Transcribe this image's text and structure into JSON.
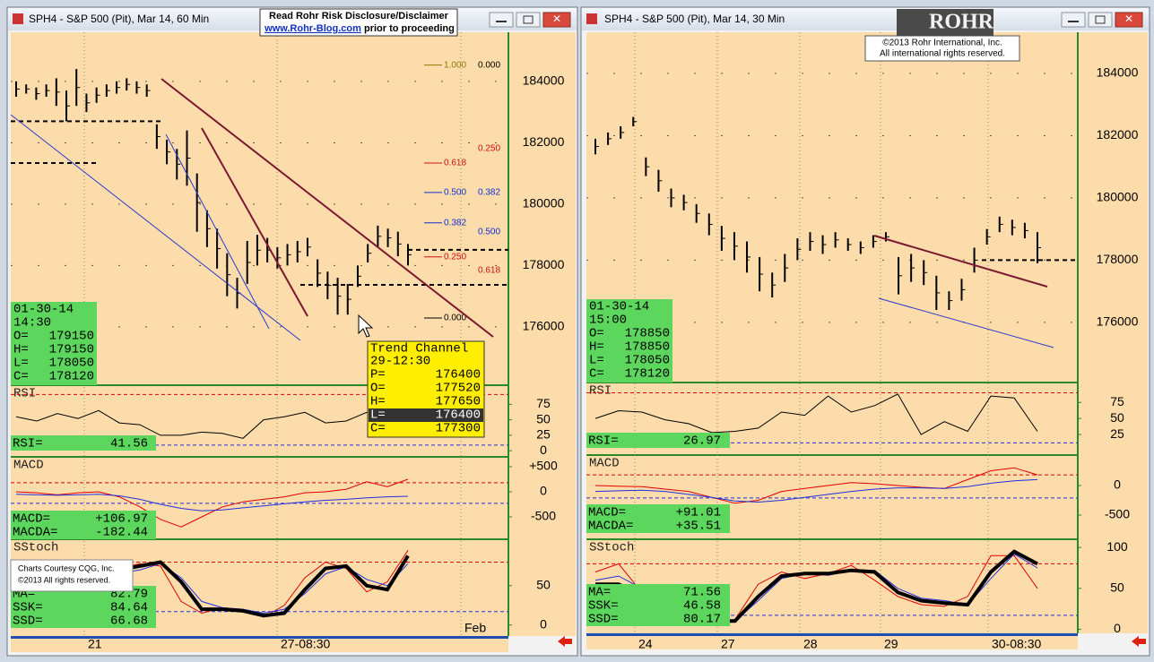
{
  "disclaimer": {
    "heading": "Read Rohr Risk Disclosure/Disclaimer",
    "link": "www.Rohr-Blog.com",
    "tail": "prior to proceeding"
  },
  "logo": {
    "brand": "ROHR",
    "copyright": "©2013  Rohr International, Inc.",
    "rights": "All international rights reserved."
  },
  "courtesy": {
    "line1": "Charts Courtesy CQG, Inc.",
    "line2": "©2013 All rights reserved."
  },
  "trend_channel": {
    "title": "Trend Channel",
    "time": "29-12:30",
    "rows": [
      {
        "label": "P=",
        "value": "176400"
      },
      {
        "label": "O=",
        "value": "177520"
      },
      {
        "label": "H=",
        "value": "177650"
      },
      {
        "label": "L=",
        "value": "176400"
      },
      {
        "label": "C=",
        "value": "177300"
      }
    ]
  },
  "windows": [
    {
      "title": "SPH4 - S&P 500 (Pit), Mar 14, 60 Min",
      "price": {
        "ylim": [
          174100,
          185600
        ],
        "yticks": [
          184000,
          182000,
          180000,
          178000,
          176000
        ],
        "highs": [
          184000,
          183900,
          183800,
          183900,
          184100,
          183700,
          184400,
          183600,
          183800,
          183900,
          184000,
          184100,
          184000,
          183900,
          182600,
          182100,
          181800,
          182400,
          181000,
          179800,
          179200,
          178400,
          177600,
          178800,
          179000,
          178900,
          178600,
          178700,
          178800,
          178900,
          178200,
          177800,
          177600,
          177400,
          178000,
          178700,
          179300,
          179200,
          179100,
          178700
        ],
        "lows": [
          183500,
          183600,
          183400,
          183500,
          183200,
          182700,
          183200,
          183000,
          183300,
          183500,
          183600,
          183700,
          183600,
          183500,
          181800,
          181300,
          180800,
          180600,
          179100,
          178600,
          177900,
          177000,
          176600,
          177400,
          178000,
          178100,
          177900,
          178000,
          178100,
          178300,
          177300,
          176900,
          176400,
          176400,
          177300,
          178100,
          178600,
          178600,
          178300,
          178000
        ],
        "levels": [
          182700,
          181340,
          178510,
          177370
        ],
        "fib": [
          {
            "label": "1.000",
            "price": 184530,
            "color": "#8a7a00"
          },
          {
            "label": "0.000",
            "price": 184530,
            "color": "#000000"
          },
          {
            "label": "0.250",
            "price": 181810,
            "color": "#d01010"
          },
          {
            "label": "0.618",
            "price": 181340,
            "color": "#d01010"
          },
          {
            "label": "0.500",
            "price": 180380,
            "color": "#1030d0"
          },
          {
            "label": "0.382",
            "price": 180380,
            "color": "#1030d0"
          },
          {
            "label": "0.382",
            "price": 179390,
            "color": "#1030d0"
          },
          {
            "label": "0.500",
            "price": 179100,
            "color": "#1030d0"
          },
          {
            "label": "0.250",
            "price": 178280,
            "color": "#d01010"
          },
          {
            "label": "0.618",
            "price": 177840,
            "color": "#d01010"
          },
          {
            "label": "0.000",
            "price": 176290,
            "color": "#000000"
          }
        ]
      },
      "info": {
        "date": "01-30-14",
        "time": "14:30",
        "rows": [
          {
            "label": "O=",
            "value": "179150"
          },
          {
            "label": "H=",
            "value": "179150"
          },
          {
            "label": "L=",
            "value": "178050"
          },
          {
            "label": "C=",
            "value": "178120"
          }
        ]
      },
      "x_labels": [
        "21",
        "27-08:30",
        "Feb"
      ],
      "panes": [
        {
          "name": "RSI",
          "ylim": [
            -10,
            106
          ],
          "yticks": [
            75,
            50,
            25,
            0
          ],
          "guides": [
            91,
            9
          ],
          "series": [
            {
              "color": "#000000",
              "values": [
                55,
                48,
                60,
                52,
                65,
                45,
                42,
                25,
                25,
                30,
                28,
                20,
                50,
                55,
                62,
                45,
                48,
                62,
                40,
                50
              ]
            }
          ],
          "readout": [
            {
              "label": "RSI=",
              "value": "41.56"
            }
          ]
        },
        {
          "name": "MACD",
          "ylim": [
            -946,
            696
          ],
          "yticks": [
            {
              "value": 500,
              "label": "+500"
            },
            0,
            -500
          ],
          "guides": [
            180,
            -230
          ],
          "series": [
            {
              "color": "#e00000",
              "values": [
                0,
                -20,
                -60,
                -20,
                0,
                -100,
                -300,
                -550,
                -700,
                -500,
                -300,
                -200,
                -150,
                -100,
                -20,
                0,
                50,
                200,
                100,
                250
              ]
            },
            {
              "color": "#2030e0",
              "values": [
                -50,
                -60,
                -70,
                -60,
                -50,
                -80,
                -150,
                -250,
                -330,
                -380,
                -360,
                -320,
                -280,
                -240,
                -200,
                -170,
                -150,
                -120,
                -100,
                -90
              ]
            }
          ],
          "readout": [
            {
              "label": "MACD=",
              "value": "+106.97"
            },
            {
              "label": "MACDA=",
              "value": "-182.44"
            }
          ]
        },
        {
          "name": "SStoch",
          "ylim": [
            -14,
            109
          ],
          "yticks": [
            50,
            0
          ],
          "guides": [
            80,
            17
          ],
          "series": [
            {
              "color": "#e00000",
              "values": [
                45,
                50,
                55,
                62,
                68,
                72,
                78,
                75,
                30,
                15,
                22,
                20,
                10,
                25,
                60,
                80,
                72,
                42,
                55,
                95
              ]
            },
            {
              "color": "#2030e0",
              "values": [
                48,
                50,
                52,
                58,
                62,
                66,
                70,
                78,
                60,
                30,
                22,
                20,
                15,
                20,
                40,
                65,
                74,
                58,
                50,
                78
              ]
            },
            {
              "color": "#000000",
              "values": [
                50,
                52,
                55,
                60,
                65,
                70,
                75,
                80,
                55,
                20,
                20,
                18,
                12,
                15,
                45,
                72,
                75,
                50,
                45,
                88
              ]
            }
          ],
          "readout": [
            {
              "label": "MA=",
              "value": "82.79"
            },
            {
              "label": "SSK=",
              "value": "84.64"
            },
            {
              "label": "SSD=",
              "value": "66.68"
            }
          ]
        }
      ]
    },
    {
      "title": "SPH4 - S&P 500 (Pit), Mar 14, 30 Min",
      "price": {
        "ylim": [
          174070,
          185320
        ],
        "yticks": [
          184000,
          182000,
          180000,
          178000,
          176000
        ],
        "highs": [
          181900,
          182100,
          182300,
          182600,
          181300,
          180900,
          180300,
          180100,
          179800,
          179500,
          179100,
          178900,
          178600,
          178100,
          177600,
          178200,
          178700,
          178900,
          178800,
          178900,
          178700,
          178600,
          178800,
          178900,
          178100,
          178200,
          178000,
          177500,
          177000,
          177400,
          178400,
          179000,
          179400,
          179300,
          179200,
          178900
        ],
        "lows": [
          181400,
          181700,
          181900,
          182300,
          180700,
          180200,
          179700,
          179600,
          179200,
          178800,
          178300,
          178000,
          177600,
          177000,
          176800,
          177300,
          178000,
          178300,
          178200,
          178400,
          178300,
          178200,
          178400,
          178600,
          176900,
          177300,
          177200,
          176400,
          176400,
          176700,
          177600,
          178500,
          178900,
          178800,
          178700,
          177900
        ],
        "levels": [
          178000
        ],
        "fib": []
      },
      "info": {
        "date": "01-30-14",
        "time": "15:00",
        "rows": [
          {
            "label": "O=",
            "value": "178850"
          },
          {
            "label": "H=",
            "value": "178850"
          },
          {
            "label": "L=",
            "value": "178050"
          },
          {
            "label": "C=",
            "value": "178120"
          }
        ]
      },
      "x_labels": [
        "24",
        "27",
        "28",
        "29",
        "30-08:30"
      ],
      "panes": [
        {
          "name": "RSI",
          "ylim": [
            -7,
            106
          ],
          "yticks": [
            75,
            50,
            25
          ],
          "guides": [
            90,
            12
          ],
          "series": [
            {
              "color": "#000000",
              "values": [
                50,
                62,
                60,
                48,
                42,
                28,
                30,
                35,
                60,
                55,
                85,
                60,
                70,
                88,
                25,
                45,
                30,
                85,
                82,
                30
              ]
            }
          ],
          "readout": [
            {
              "label": "RSI=",
              "value": "26.97"
            }
          ]
        },
        {
          "name": "MACD",
          "ylim": [
            -909,
            515
          ],
          "yticks": [
            0,
            -500
          ],
          "guides": [
            180,
            -210
          ],
          "series": [
            {
              "color": "#e00000",
              "values": [
                0,
                -10,
                -20,
                -60,
                -100,
                -200,
                -300,
                -250,
                -100,
                -50,
                0,
                50,
                30,
                0,
                -30,
                -50,
                100,
                250,
                300,
                180
              ]
            },
            {
              "color": "#2030e0",
              "values": [
                -100,
                -90,
                -80,
                -100,
                -150,
                -200,
                -260,
                -280,
                -250,
                -200,
                -150,
                -100,
                -60,
                -40,
                -40,
                -50,
                -20,
                40,
                80,
                100
              ]
            }
          ],
          "readout": [
            {
              "label": "MACD=",
              "value": "+91.01"
            },
            {
              "label": "MACDA=",
              "value": "+35.51"
            }
          ]
        },
        {
          "name": "SStoch",
          "ylim": [
            -5,
            110
          ],
          "yticks": [
            100,
            50,
            0
          ],
          "guides": [
            80,
            17
          ],
          "series": [
            {
              "color": "#e00000",
              "values": [
                70,
                80,
                45,
                8,
                8,
                8,
                12,
                55,
                70,
                62,
                68,
                78,
                60,
                40,
                30,
                28,
                40,
                90,
                90,
                50
              ]
            },
            {
              "color": "#2030e0",
              "values": [
                60,
                65,
                50,
                12,
                10,
                10,
                10,
                35,
                62,
                68,
                66,
                72,
                72,
                50,
                38,
                35,
                30,
                62,
                92,
                75
              ]
            },
            {
              "color": "#000000",
              "values": [
                55,
                55,
                42,
                10,
                10,
                10,
                10,
                40,
                65,
                68,
                68,
                72,
                70,
                45,
                35,
                32,
                30,
                70,
                95,
                80
              ]
            }
          ],
          "readout": [
            {
              "label": "MA=",
              "value": "71.56"
            },
            {
              "label": "SSK=",
              "value": "46.58"
            },
            {
              "label": "SSD=",
              "value": "80.17"
            }
          ]
        }
      ]
    }
  ]
}
